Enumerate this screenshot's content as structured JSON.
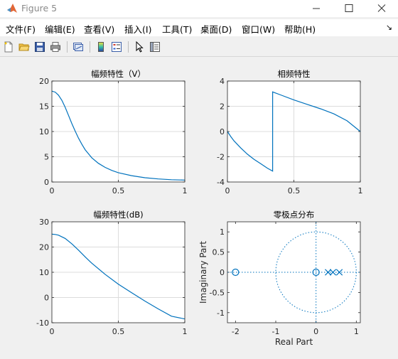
{
  "window": {
    "title": "Figure 5",
    "icon": "matlab-logo-icon",
    "controls": [
      "minimize-icon",
      "maximize-icon",
      "close-icon"
    ]
  },
  "menubar": {
    "items": [
      "文件(F)",
      "编辑(E)",
      "查看(V)",
      "插入(I)",
      "工具(T)",
      "桌面(D)",
      "窗口(W)",
      "帮助(H)"
    ],
    "overflow": "↘"
  },
  "toolbar": {
    "buttons": [
      "new-figure-icon",
      "open-file-icon",
      "save-icon",
      "print-icon",
      "link-plot-icon",
      "insert-colorbar-icon",
      "insert-legend-icon",
      "pointer-icon",
      "property-editor-icon"
    ]
  },
  "colors": {
    "line": "#0072bd",
    "grid": "#dcdcdc",
    "axis": "#262626",
    "background": "#f0f0f0"
  },
  "chart_data": [
    {
      "type": "line",
      "title": "幅频特性（V）",
      "xlabel": "",
      "ylabel": "",
      "xlim": [
        0,
        1
      ],
      "ylim": [
        0,
        20
      ],
      "xticks": [
        0,
        0.5,
        1
      ],
      "yticks": [
        0,
        5,
        10,
        15,
        20
      ],
      "grid": true,
      "series": [
        {
          "x": [
            0,
            0.025,
            0.05,
            0.075,
            0.1,
            0.125,
            0.15,
            0.175,
            0.2,
            0.225,
            0.25,
            0.3,
            0.35,
            0.4,
            0.45,
            0.5,
            0.6,
            0.7,
            0.8,
            0.9,
            1.0
          ],
          "y": [
            18.0,
            17.8,
            17.2,
            16.2,
            14.8,
            13.2,
            11.6,
            10.1,
            8.7,
            7.5,
            6.4,
            4.8,
            3.7,
            2.9,
            2.3,
            1.85,
            1.25,
            0.85,
            0.6,
            0.45,
            0.38
          ]
        }
      ]
    },
    {
      "type": "line",
      "title": "相频特性",
      "xlabel": "",
      "ylabel": "",
      "xlim": [
        0,
        1
      ],
      "ylim": [
        -4,
        4
      ],
      "xticks": [
        0,
        0.5,
        1
      ],
      "yticks": [
        -4,
        -2,
        0,
        2,
        4
      ],
      "grid": true,
      "series": [
        {
          "x": [
            0,
            0.025,
            0.05,
            0.1,
            0.15,
            0.2,
            0.25,
            0.3,
            0.34,
            0.34,
            0.4,
            0.5,
            0.6,
            0.7,
            0.8,
            0.9,
            1.0
          ],
          "y": [
            0,
            -0.4,
            -0.75,
            -1.3,
            -1.8,
            -2.2,
            -2.55,
            -2.9,
            -3.14,
            3.14,
            2.9,
            2.5,
            2.15,
            1.8,
            1.4,
            0.85,
            0
          ]
        }
      ]
    },
    {
      "type": "line",
      "title": "幅频特性(dB)",
      "xlabel": "",
      "ylabel": "",
      "xlim": [
        0,
        1
      ],
      "ylim": [
        -10,
        30
      ],
      "xticks": [
        0,
        0.5,
        1
      ],
      "yticks": [
        -10,
        0,
        10,
        20,
        30
      ],
      "grid": true,
      "series": [
        {
          "x": [
            0,
            0.025,
            0.05,
            0.1,
            0.15,
            0.2,
            0.25,
            0.3,
            0.4,
            0.5,
            0.6,
            0.7,
            0.8,
            0.9,
            1.0
          ],
          "y": [
            25.1,
            25.0,
            24.7,
            23.4,
            21.3,
            18.8,
            16.1,
            13.6,
            9.2,
            5.3,
            1.9,
            -1.4,
            -4.5,
            -7.4,
            -8.5
          ]
        }
      ]
    },
    {
      "type": "scatter",
      "title": "零极点分布",
      "xlabel": "Real Part",
      "ylabel": "Imaginary Part",
      "xlim": [
        -2.2,
        1.1
      ],
      "ylim": [
        -1.25,
        1.25
      ],
      "xticks": [
        -2,
        -1,
        0,
        1
      ],
      "yticks": [
        -1,
        -0.5,
        0,
        0.5,
        1
      ],
      "grid": false,
      "unit_circle": true,
      "zeros": [
        [
          -2.0,
          0
        ],
        [
          0.0,
          0
        ]
      ],
      "poles": [
        [
          0.3,
          0
        ],
        [
          0.42,
          0
        ],
        [
          0.58,
          0
        ]
      ]
    }
  ]
}
